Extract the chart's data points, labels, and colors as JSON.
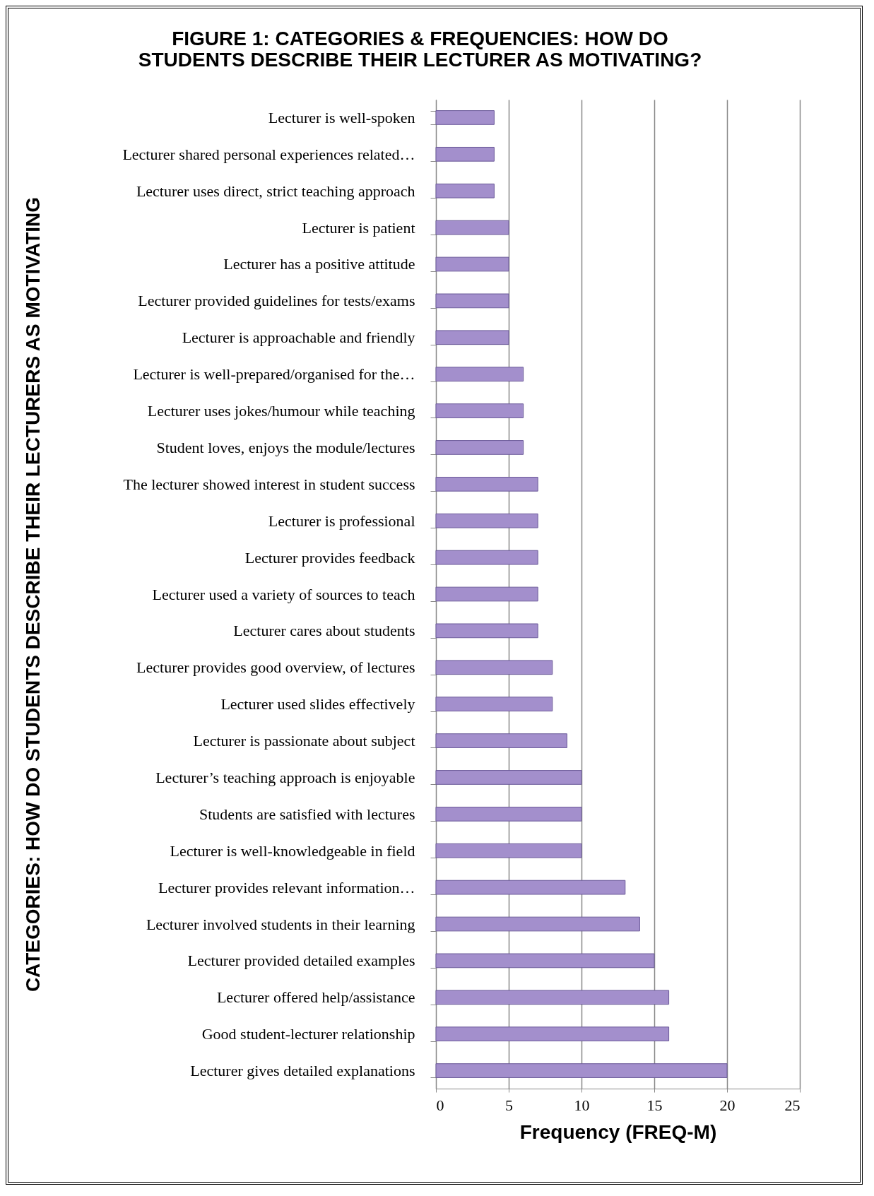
{
  "chart_data": {
    "type": "bar",
    "orientation": "horizontal",
    "title": [
      "FIGURE 1: CATEGORIES & FREQUENCIES: HOW DO",
      "STUDENTS DESCRIBE THEIR LECTURER AS MOTIVATING?"
    ],
    "xlabel": "Frequency (FREQ-M)",
    "ylabel": "CATEGORIES: HOW DO STUDENTS DESCRIBE THEIR LECTURERS AS MOTIVATING",
    "categories": [
      "Lecturer is well-spoken",
      "Lecturer shared personal experiences related…",
      "Lecturer uses direct, strict teaching approach",
      "Lecturer is patient",
      "Lecturer has a positive attitude",
      "Lecturer provided guidelines for tests/exams",
      "Lecturer is approachable and friendly",
      "Lecturer is well-prepared/organised for the…",
      "Lecturer uses jokes/humour while teaching",
      "Student loves, enjoys the module/lectures",
      "The lecturer showed interest in student success",
      "Lecturer is professional",
      "Lecturer provides feedback",
      "Lecturer used a variety of sources to teach",
      "Lecturer cares about students",
      "Lecturer provides good overview, of lectures",
      "Lecturer used slides effectively",
      "Lecturer is passionate about subject",
      "Lecturer’s teaching approach is enjoyable",
      "Students are satisfied with lectures",
      "Lecturer is well-knowledgeable in field",
      "Lecturer provides relevant information…",
      "Lecturer involved students in their learning",
      "Lecturer provided detailed examples",
      "Lecturer offered help/assistance",
      "Good student-lecturer relationship",
      "Lecturer gives detailed explanations"
    ],
    "values": [
      4,
      4,
      4,
      5,
      5,
      5,
      5,
      6,
      6,
      6,
      7,
      7,
      7,
      7,
      7,
      8,
      8,
      9,
      10,
      10,
      10,
      13,
      14,
      15,
      16,
      16,
      20
    ],
    "color": "#a38fcc",
    "xlim": [
      0,
      25
    ],
    "xticks": [
      0,
      5,
      10,
      15,
      20,
      25
    ],
    "grid": "x"
  }
}
